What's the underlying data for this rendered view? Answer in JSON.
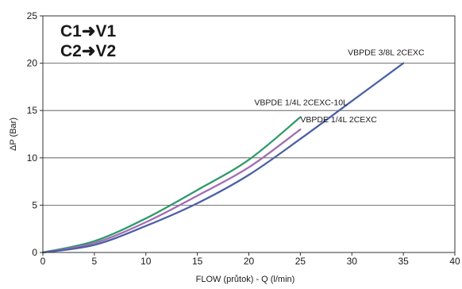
{
  "chart_data": {
    "type": "line",
    "xlabel": "FLOW (průtok) - Q (l/min)",
    "ylabel": "ΔP (Bar)",
    "xlim": [
      0,
      40
    ],
    "ylim": [
      0,
      25
    ],
    "x_ticks": [
      "0",
      "5",
      "10",
      "15",
      "20",
      "25",
      "30",
      "35",
      "40"
    ],
    "y_ticks": [
      "0",
      "5",
      "10",
      "15",
      "20",
      "25"
    ],
    "grid": "horizontal",
    "annotations": {
      "line1": "C1➜V1",
      "line2": "C2➜V2"
    },
    "series": [
      {
        "name": "VBPDE 1/4L 2CEXC-10L",
        "color": "#2e9a6a",
        "x": [
          0,
          5,
          10,
          15,
          20,
          25
        ],
        "y": [
          0,
          1.2,
          3.6,
          6.6,
          9.8,
          14.3
        ]
      },
      {
        "name": "VBPDE 1/4L 2CEXC",
        "color": "#a26cb3",
        "x": [
          0,
          5,
          10,
          15,
          20,
          25
        ],
        "y": [
          0,
          1.0,
          3.2,
          6.0,
          9.0,
          13.0
        ]
      },
      {
        "name": "VBPDE 3/8L 2CEXC",
        "color": "#4a60a6",
        "x": [
          0,
          5,
          10,
          15,
          20,
          25,
          30,
          35
        ],
        "y": [
          0,
          0.8,
          2.8,
          5.2,
          8.2,
          12.0,
          16.0,
          20.0
        ]
      }
    ]
  }
}
